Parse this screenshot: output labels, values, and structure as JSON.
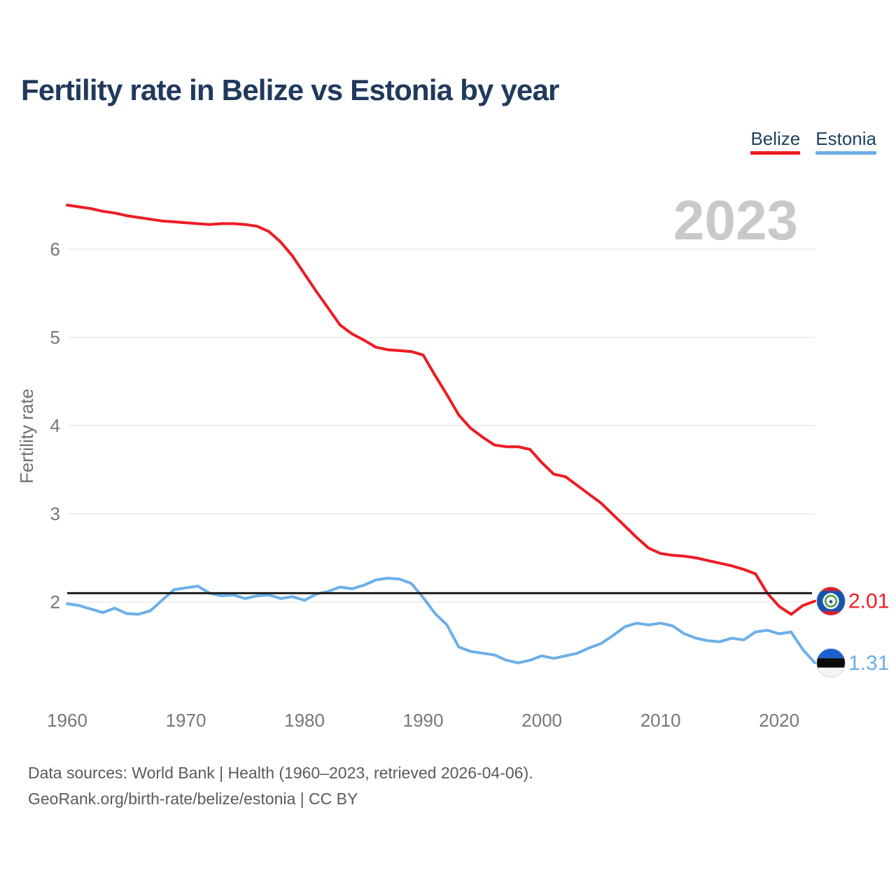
{
  "title": "Fertility rate in Belize vs Estonia by year",
  "watermark": "2023",
  "ylabel": "Fertility rate",
  "legend": {
    "items": [
      {
        "label": "Belize",
        "color": "#ed1c24"
      },
      {
        "label": "Estonia",
        "color": "#6cafe8"
      }
    ]
  },
  "footer": {
    "line1": "Data sources: World Bank | Health (1960–2023, retrieved 2026-04-06).",
    "line2": "GeoRank.org/birth-rate/belize/estonia | CC BY"
  },
  "chart_data": {
    "type": "line",
    "title": "Fertility rate in Belize vs Estonia by year",
    "xlabel": "",
    "ylabel": "Fertility rate",
    "xlim": [
      1960,
      2023
    ],
    "ylim": [
      1.2,
      6.7
    ],
    "yticks": [
      2,
      3,
      4,
      5,
      6
    ],
    "xticks": [
      1960,
      1970,
      1980,
      1990,
      2000,
      2010,
      2020
    ],
    "grid": "horizontal",
    "legend_position": "top-right",
    "reference_line": {
      "value": 2.1,
      "color": "#1c1c1c"
    },
    "years": [
      1960,
      1961,
      1962,
      1963,
      1964,
      1965,
      1966,
      1967,
      1968,
      1969,
      1970,
      1971,
      1972,
      1973,
      1974,
      1975,
      1976,
      1977,
      1978,
      1979,
      1980,
      1981,
      1982,
      1983,
      1984,
      1985,
      1986,
      1987,
      1988,
      1989,
      1990,
      1991,
      1992,
      1993,
      1994,
      1995,
      1996,
      1997,
      1998,
      1999,
      2000,
      2001,
      2002,
      2003,
      2004,
      2005,
      2006,
      2007,
      2008,
      2009,
      2010,
      2011,
      2012,
      2013,
      2014,
      2015,
      2016,
      2017,
      2018,
      2019,
      2020,
      2021,
      2022,
      2023
    ],
    "series": [
      {
        "name": "Belize",
        "color": "#ed1c24",
        "end_label": "2.01",
        "values": [
          6.5,
          6.48,
          6.46,
          6.43,
          6.41,
          6.38,
          6.36,
          6.34,
          6.32,
          6.31,
          6.3,
          6.29,
          6.28,
          6.29,
          6.29,
          6.28,
          6.26,
          6.2,
          6.08,
          5.92,
          5.72,
          5.52,
          5.33,
          5.14,
          5.04,
          4.97,
          4.89,
          4.86,
          4.85,
          4.84,
          4.8,
          4.57,
          4.35,
          4.12,
          3.97,
          3.87,
          3.78,
          3.76,
          3.76,
          3.73,
          3.58,
          3.45,
          3.42,
          3.32,
          3.22,
          3.12,
          2.99,
          2.86,
          2.73,
          2.61,
          2.55,
          2.53,
          2.52,
          2.5,
          2.47,
          2.44,
          2.41,
          2.37,
          2.32,
          2.1,
          1.95,
          1.86,
          1.96,
          2.01
        ]
      },
      {
        "name": "Estonia",
        "color": "#6cafe8",
        "end_label": "1.31",
        "values": [
          1.98,
          1.96,
          1.92,
          1.88,
          1.93,
          1.87,
          1.86,
          1.9,
          2.02,
          2.14,
          2.16,
          2.18,
          2.1,
          2.07,
          2.08,
          2.04,
          2.07,
          2.08,
          2.04,
          2.06,
          2.02,
          2.09,
          2.12,
          2.17,
          2.15,
          2.19,
          2.25,
          2.27,
          2.26,
          2.21,
          2.05,
          1.87,
          1.74,
          1.49,
          1.44,
          1.42,
          1.4,
          1.34,
          1.31,
          1.34,
          1.39,
          1.36,
          1.39,
          1.42,
          1.48,
          1.53,
          1.62,
          1.72,
          1.76,
          1.74,
          1.76,
          1.73,
          1.64,
          1.59,
          1.56,
          1.55,
          1.59,
          1.57,
          1.66,
          1.68,
          1.64,
          1.66,
          1.46,
          1.31
        ]
      }
    ]
  }
}
